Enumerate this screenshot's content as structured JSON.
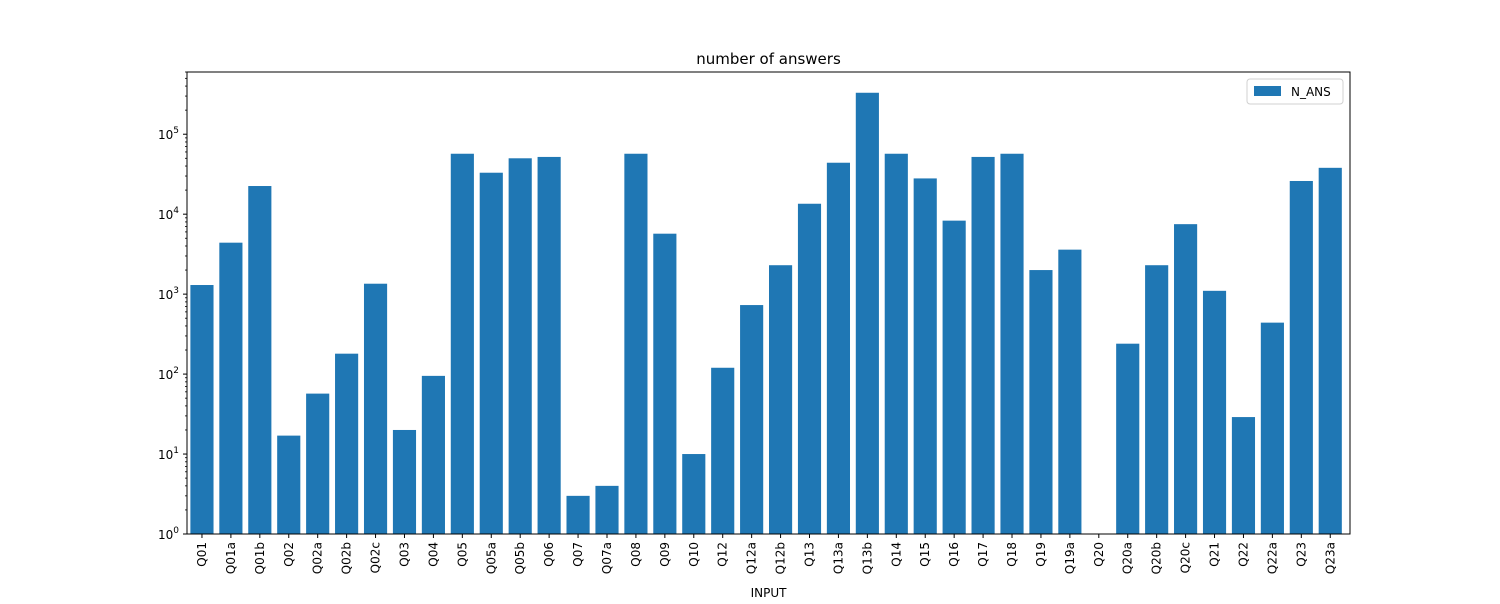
{
  "chart_data": {
    "type": "bar",
    "title": "number of answers",
    "xlabel": "INPUT",
    "ylabel": "",
    "yscale": "log",
    "ylim": [
      1,
      600000
    ],
    "grid": false,
    "legend_position": "top-right",
    "categories": [
      "Q01",
      "Q01a",
      "Q01b",
      "Q02",
      "Q02a",
      "Q02b",
      "Q02c",
      "Q03",
      "Q04",
      "Q05",
      "Q05a",
      "Q05b",
      "Q06",
      "Q07",
      "Q07a",
      "Q08",
      "Q09",
      "Q10",
      "Q12",
      "Q12a",
      "Q12b",
      "Q13",
      "Q13a",
      "Q13b",
      "Q14",
      "Q15",
      "Q16",
      "Q17",
      "Q18",
      "Q19",
      "Q19a",
      "Q20",
      "Q20a",
      "Q20b",
      "Q20c",
      "Q21",
      "Q22",
      "Q22a",
      "Q23",
      "Q23a"
    ],
    "series": [
      {
        "name": "N_ANS",
        "color": "#1f77b4",
        "values": [
          1300,
          4400,
          22500,
          17,
          57,
          180,
          1350,
          20,
          95,
          57000,
          33000,
          50000,
          52000,
          3,
          4,
          57000,
          5700,
          10,
          120,
          730,
          2300,
          13500,
          44000,
          330000,
          57000,
          28000,
          8300,
          52000,
          57000,
          2000,
          3600,
          1,
          240,
          2300,
          7500,
          1100,
          29,
          440,
          26000,
          38000
        ]
      }
    ],
    "y_ticks": [
      {
        "value": 1,
        "base": "10",
        "exp": "0"
      },
      {
        "value": 10,
        "base": "10",
        "exp": "1"
      },
      {
        "value": 100,
        "base": "10",
        "exp": "2"
      },
      {
        "value": 1000,
        "base": "10",
        "exp": "3"
      },
      {
        "value": 10000,
        "base": "10",
        "exp": "4"
      },
      {
        "value": 100000,
        "base": "10",
        "exp": "5"
      }
    ]
  }
}
